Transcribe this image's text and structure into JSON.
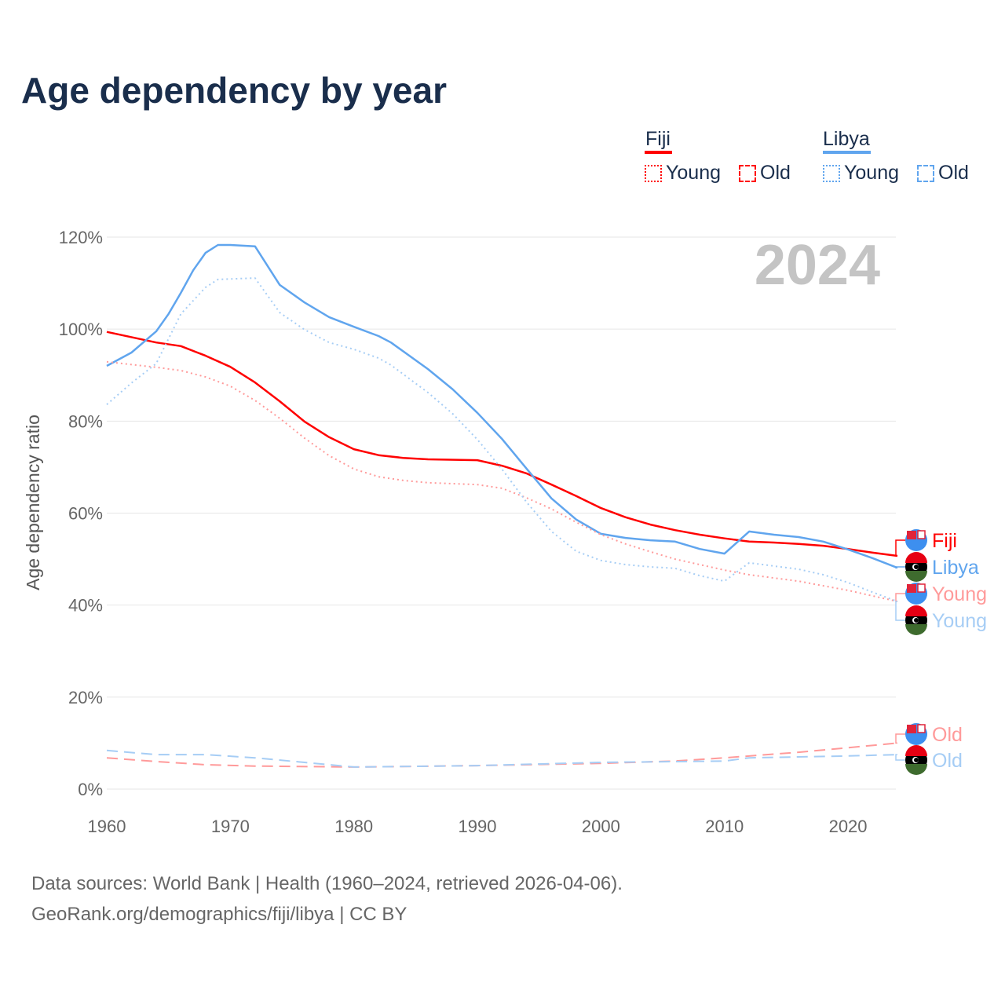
{
  "title": "Age dependency by year",
  "legend": {
    "groups": [
      {
        "name": "Fiji",
        "color": "#ff0000",
        "items": [
          "Young",
          "Old"
        ]
      },
      {
        "name": "Libya",
        "color": "#60a5ee",
        "items": [
          "Young",
          "Old"
        ]
      }
    ]
  },
  "footer": {
    "line1": "Data sources: World Bank | Health (1960–2024, retrieved 2026-04-06).",
    "line2": "GeoRank.org/demographics/fiji/libya | CC BY"
  },
  "chart_data": {
    "type": "line",
    "title": "Age dependency by year",
    "ylabel": "Age dependency ratio",
    "xlabel": "",
    "year_label": "2024",
    "xlim": [
      1960,
      2024
    ],
    "ylim": [
      0,
      120
    ],
    "x_ticks": [
      "1960",
      "1970",
      "1980",
      "1990",
      "2000",
      "2010",
      "2020"
    ],
    "y_ticks": [
      "0%",
      "20%",
      "40%",
      "60%",
      "80%",
      "100%",
      "120%"
    ],
    "grid": true,
    "series": [
      {
        "name": "Fiji",
        "end_label": "Fiji",
        "country": "fiji",
        "style": "solid",
        "color": "#ff0000",
        "x": [
          1960,
          1964,
          1966,
          1968,
          1970,
          1972,
          1974,
          1976,
          1978,
          1980,
          1982,
          1984,
          1986,
          1990,
          1992,
          1994,
          1996,
          1998,
          2000,
          2002,
          2004,
          2006,
          2008,
          2010,
          2012,
          2014,
          2016,
          2018,
          2020,
          2022,
          2024
        ],
        "y": [
          99.4,
          97.1,
          96.3,
          94.2,
          91.8,
          88.4,
          84.3,
          79.9,
          76.5,
          73.9,
          72.6,
          72.0,
          71.7,
          71.5,
          70.3,
          68.6,
          66.2,
          63.7,
          61.1,
          59.1,
          57.5,
          56.3,
          55.3,
          54.5,
          53.8,
          53.6,
          53.3,
          52.9,
          52.2,
          51.4,
          50.7
        ]
      },
      {
        "name": "Libya",
        "end_label": "Libya",
        "country": "libya",
        "style": "solid",
        "color": "#60a5ee",
        "x": [
          1960,
          1962,
          1964,
          1965,
          1966,
          1967,
          1968,
          1969,
          1970,
          1972,
          1974,
          1976,
          1978,
          1980,
          1982,
          1983,
          1986,
          1988,
          1990,
          1992,
          1994,
          1996,
          1998,
          2000,
          2002,
          2004,
          2006,
          2008,
          2010,
          2012,
          2014,
          2016,
          2018,
          2020,
          2022,
          2024
        ],
        "y": [
          92.0,
          94.9,
          99.5,
          103.3,
          107.9,
          112.8,
          116.6,
          118.3,
          118.3,
          118.0,
          109.6,
          105.8,
          102.6,
          100.5,
          98.5,
          97.1,
          91.3,
          86.9,
          81.8,
          76.1,
          69.6,
          63.2,
          58.6,
          55.5,
          54.6,
          54.1,
          53.8,
          52.2,
          51.2,
          56.0,
          55.3,
          54.8,
          53.8,
          52.1,
          50.2,
          48.1
        ]
      },
      {
        "name": "Fiji Young",
        "end_label": "Young",
        "country": "fiji",
        "style": "dotted",
        "color": "#ff9a9a",
        "x": [
          1960,
          1964,
          1966,
          1968,
          1970,
          1972,
          1974,
          1976,
          1978,
          1980,
          1982,
          1984,
          1986,
          1990,
          1992,
          1994,
          1996,
          1998,
          2000,
          2002,
          2004,
          2006,
          2008,
          2010,
          2012,
          2014,
          2016,
          2018,
          2020,
          2022,
          2024
        ],
        "y": [
          92.9,
          91.7,
          91.0,
          89.6,
          87.6,
          84.5,
          80.6,
          76.3,
          72.5,
          69.6,
          67.9,
          67.1,
          66.6,
          66.2,
          65.4,
          63.3,
          60.9,
          58.0,
          55.3,
          53.3,
          51.6,
          50.0,
          48.8,
          47.6,
          46.6,
          45.9,
          45.2,
          44.2,
          43.2,
          42.0,
          40.8
        ]
      },
      {
        "name": "Libya Young",
        "end_label": "Young",
        "country": "libya",
        "style": "dotted",
        "color": "#a6cdf5",
        "x": [
          1960,
          1962,
          1964,
          1966,
          1968,
          1969,
          1972,
          1974,
          1976,
          1978,
          1980,
          1982,
          1983,
          1986,
          1988,
          1990,
          1992,
          1994,
          1996,
          1998,
          2000,
          2002,
          2004,
          2006,
          2008,
          2010,
          2012,
          2014,
          2016,
          2018,
          2020,
          2022,
          2024
        ],
        "y": [
          83.6,
          88.3,
          92.5,
          103.3,
          109.1,
          110.8,
          111.1,
          103.6,
          99.9,
          97.1,
          95.6,
          93.7,
          92.2,
          86.2,
          81.6,
          76.0,
          69.5,
          62.3,
          56.0,
          51.7,
          49.7,
          48.8,
          48.3,
          48.0,
          46.4,
          45.2,
          49.2,
          48.5,
          47.8,
          46.6,
          44.9,
          42.8,
          40.8
        ]
      },
      {
        "name": "Fiji Old",
        "end_label": "Old",
        "country": "fiji",
        "style": "dashed",
        "color": "#ff9a9a",
        "x": [
          1960,
          1964,
          1968,
          1972,
          1980,
          1990,
          2000,
          2006,
          2010,
          2016,
          2020,
          2024
        ],
        "y": [
          6.8,
          6.0,
          5.3,
          5.0,
          4.8,
          5.1,
          5.6,
          6.1,
          6.8,
          8.0,
          9.0,
          10.0
        ]
      },
      {
        "name": "Libya Old",
        "end_label": "Old",
        "country": "libya",
        "style": "dashed",
        "color": "#a6cdf5",
        "x": [
          1960,
          1964,
          1968,
          1972,
          1976,
          1980,
          1990,
          2000,
          2010,
          2012,
          2020,
          2024
        ],
        "y": [
          8.4,
          7.5,
          7.5,
          6.8,
          5.8,
          4.8,
          5.1,
          5.8,
          6.1,
          6.8,
          7.2,
          7.5
        ]
      }
    ]
  }
}
